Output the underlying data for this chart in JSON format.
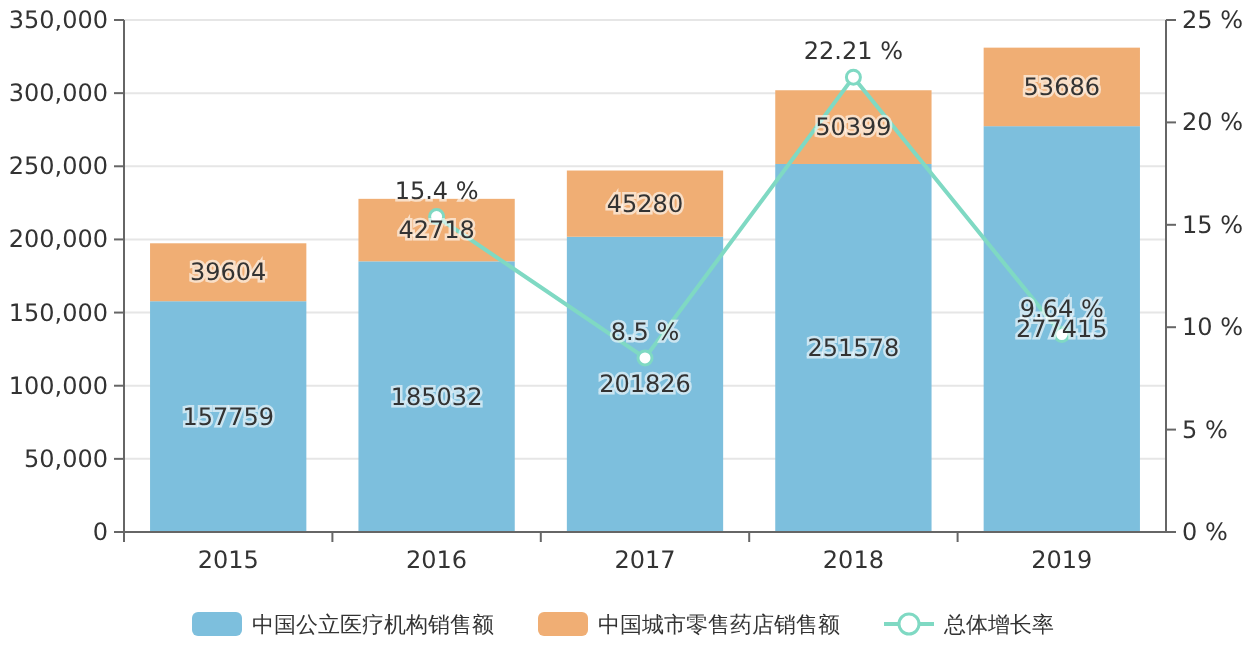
{
  "chart_data": {
    "type": "bar",
    "stacked": true,
    "categories": [
      "2015",
      "2016",
      "2017",
      "2018",
      "2019"
    ],
    "series": [
      {
        "name": "中国公立医疗机构销售额",
        "color": "#7dbfdd",
        "values": [
          157759,
          185032,
          201826,
          251578,
          277415
        ]
      },
      {
        "name": "中国城市零售药店销售额",
        "color": "#f0ae74",
        "values": [
          39604,
          42718,
          45280,
          50399,
          53686
        ]
      },
      {
        "name": "总体增长率",
        "type": "line",
        "axis": "y2",
        "color": "#7fd9c3",
        "marker": "circle",
        "values": [
          null,
          15.4,
          8.5,
          22.21,
          9.64
        ],
        "value_labels": [
          null,
          "15.4 %",
          "8.5 %",
          "22.21 %",
          "9.64 %"
        ]
      }
    ],
    "data_labels": true,
    "ylim": [
      0,
      350000
    ],
    "yticks": [
      0,
      {
        "value": 50000,
        "label": "50,000"
      },
      {
        "value": 100000,
        "label": "100,000"
      },
      {
        "value": 150000,
        "label": "150,000"
      },
      {
        "value": 200000,
        "label": "200,000"
      },
      {
        "value": 250000,
        "label": "250,000"
      },
      {
        "value": 300000,
        "label": "300,000"
      },
      {
        "value": 350000,
        "label": "350,000"
      }
    ],
    "y2lim": [
      0,
      25
    ],
    "y2ticks": [
      {
        "value": 0,
        "label": "0 %"
      },
      {
        "value": 5,
        "label": "5 %"
      },
      {
        "value": 10,
        "label": "10 %"
      },
      {
        "value": 15,
        "label": "15 %"
      },
      {
        "value": 20,
        "label": "20 %"
      },
      {
        "value": 25,
        "label": "25 %"
      }
    ],
    "grid": "y",
    "legend": "bottom"
  }
}
